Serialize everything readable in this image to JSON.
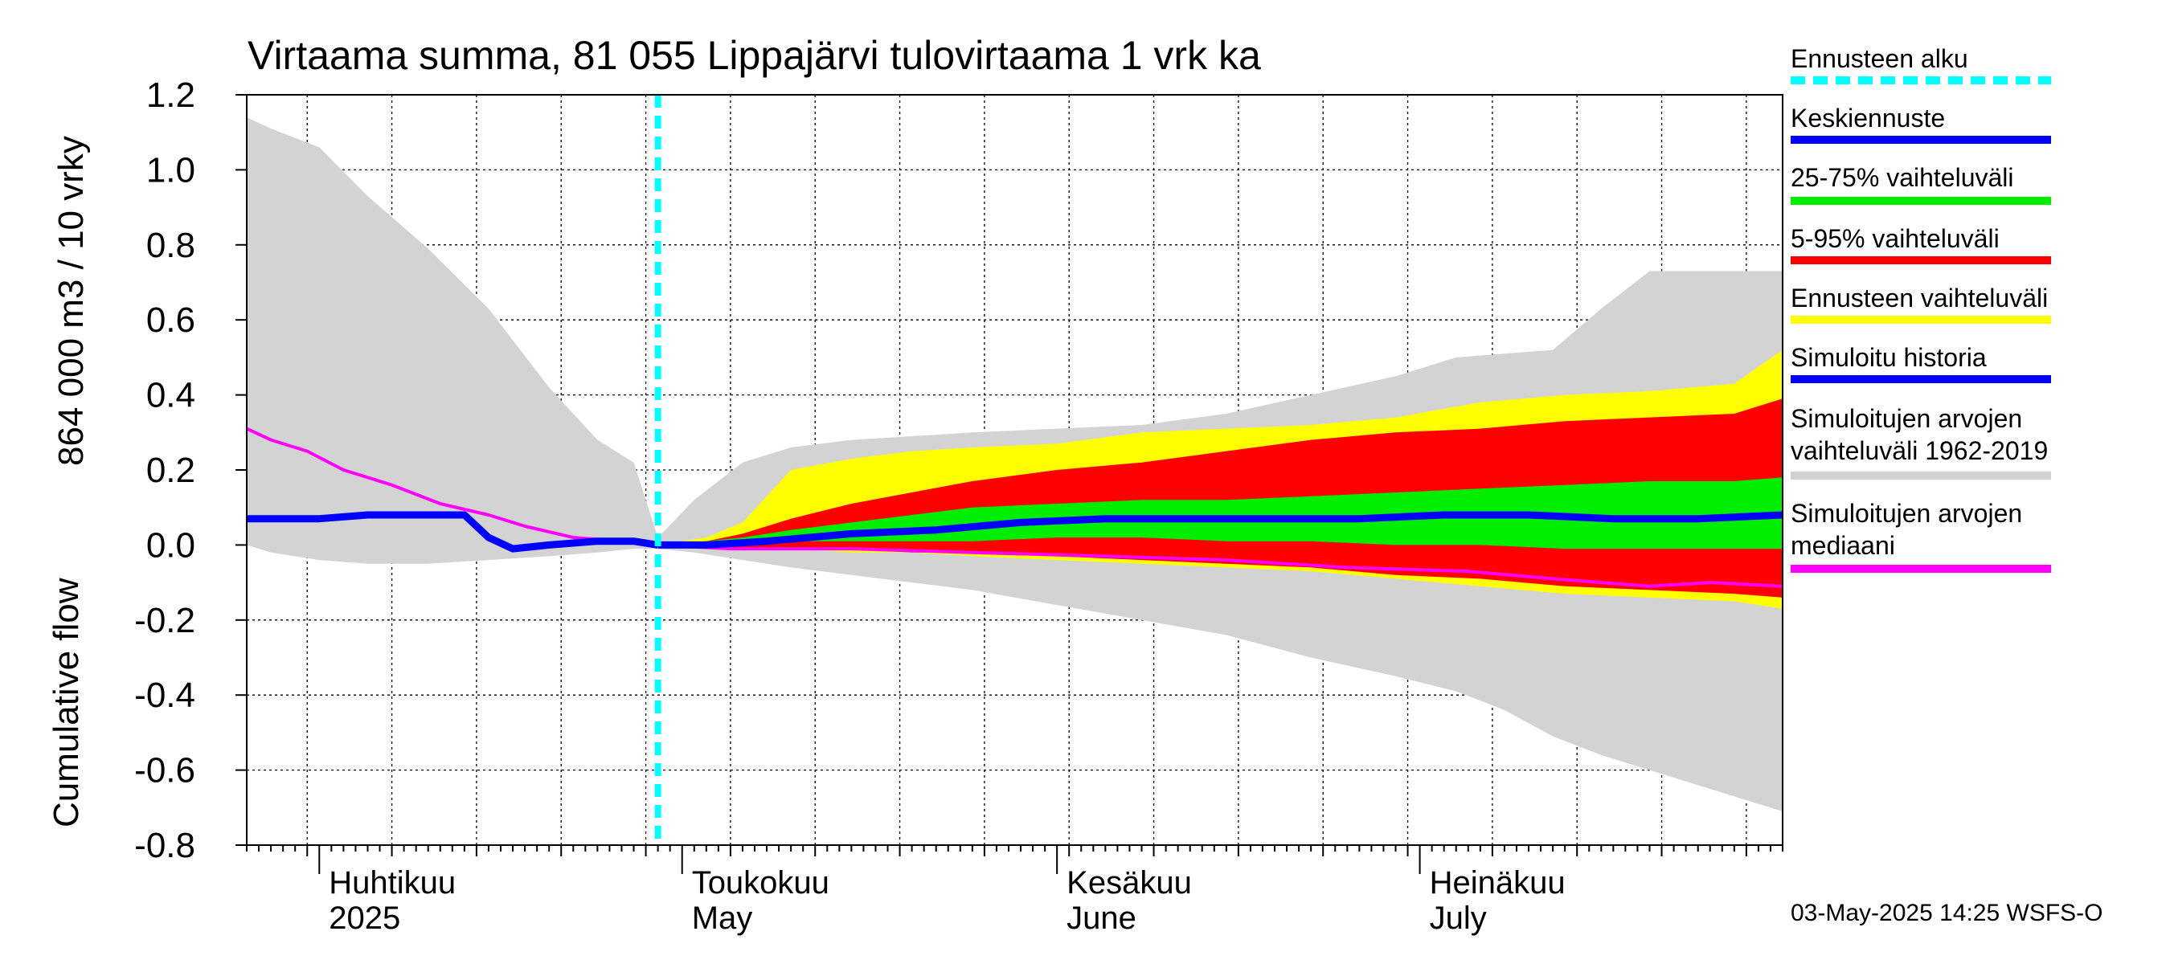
{
  "chart_data": {
    "type": "area",
    "title": "Virtaama summa, 81 055 Lippajärvi tulovirtaama 1 vrk ka",
    "ylabel_top": "864 000 m3 / 10 vrky",
    "ylabel_bottom": "Cumulative flow",
    "ylim": [
      -0.8,
      1.2
    ],
    "yticks": [
      -0.8,
      -0.6,
      -0.4,
      -0.2,
      0.0,
      0.2,
      0.4,
      0.6,
      0.8,
      1.0,
      1.2
    ],
    "ytick_labels": [
      "-0.8",
      "-0.6",
      "-0.4",
      "-0.2",
      "0.0",
      "0.2",
      "0.4",
      "0.6",
      "0.8",
      "1.0",
      "1.2"
    ],
    "x_start": "2025-03-26",
    "x_end": "2025-07-31",
    "grid": true,
    "month_labels": [
      {
        "date": "2025-04-01",
        "line1": "Huhtikuu",
        "line2": "2025"
      },
      {
        "date": "2025-05-01",
        "line1": "Toukokuu",
        "line2": "May"
      },
      {
        "date": "2025-06-01",
        "line1": "Kesäkuu",
        "line2": "June"
      },
      {
        "date": "2025-07-01",
        "line1": "Heinäkuu",
        "line2": "July"
      }
    ],
    "forecast_start": "2025-04-29",
    "series": [
      {
        "name": "Simuloitujen arvojen vaihteluväli 1962-2019",
        "color": "#d3d3d3",
        "kind": "band",
        "x": [
          "2025-03-26",
          "2025-03-28",
          "2025-04-01",
          "2025-04-05",
          "2025-04-10",
          "2025-04-15",
          "2025-04-20",
          "2025-04-24",
          "2025-04-27",
          "2025-04-29",
          "2025-05-02",
          "2025-05-06",
          "2025-05-10",
          "2025-05-15",
          "2025-05-20",
          "2025-05-25",
          "2025-06-01",
          "2025-06-08",
          "2025-06-15",
          "2025-06-22",
          "2025-06-29",
          "2025-07-04",
          "2025-07-08",
          "2025-07-12",
          "2025-07-16",
          "2025-07-20",
          "2025-07-25",
          "2025-07-31"
        ],
        "upper": [
          1.14,
          1.11,
          1.06,
          0.93,
          0.79,
          0.63,
          0.42,
          0.28,
          0.22,
          0.02,
          0.12,
          0.22,
          0.26,
          0.28,
          0.29,
          0.3,
          0.31,
          0.32,
          0.35,
          0.4,
          0.45,
          0.5,
          0.51,
          0.52,
          0.63,
          0.73,
          0.73,
          0.73
        ],
        "lower": [
          0.0,
          -0.02,
          -0.04,
          -0.05,
          -0.05,
          -0.04,
          -0.03,
          -0.02,
          -0.01,
          -0.01,
          -0.02,
          -0.04,
          -0.06,
          -0.08,
          -0.1,
          -0.12,
          -0.16,
          -0.2,
          -0.24,
          -0.3,
          -0.35,
          -0.39,
          -0.44,
          -0.51,
          -0.56,
          -0.6,
          -0.65,
          -0.71
        ]
      },
      {
        "name": "Ennusteen vaihteluväli",
        "color": "#ffff00",
        "kind": "band",
        "x": [
          "2025-04-29",
          "2025-05-03",
          "2025-05-06",
          "2025-05-10",
          "2025-05-15",
          "2025-05-20",
          "2025-05-25",
          "2025-06-01",
          "2025-06-08",
          "2025-06-15",
          "2025-06-22",
          "2025-06-29",
          "2025-07-06",
          "2025-07-13",
          "2025-07-20",
          "2025-07-27",
          "2025-07-31"
        ],
        "upper": [
          0.0,
          0.02,
          0.06,
          0.2,
          0.23,
          0.25,
          0.26,
          0.27,
          0.3,
          0.31,
          0.32,
          0.34,
          0.38,
          0.4,
          0.41,
          0.43,
          0.52
        ],
        "lower": [
          0.0,
          -0.01,
          -0.01,
          -0.01,
          -0.02,
          -0.02,
          -0.03,
          -0.04,
          -0.05,
          -0.06,
          -0.07,
          -0.09,
          -0.11,
          -0.13,
          -0.14,
          -0.15,
          -0.17
        ]
      },
      {
        "name": "5-95% vaihteluväli",
        "color": "#ff0000",
        "kind": "band",
        "x": [
          "2025-04-29",
          "2025-05-03",
          "2025-05-06",
          "2025-05-10",
          "2025-05-15",
          "2025-05-20",
          "2025-05-25",
          "2025-06-01",
          "2025-06-08",
          "2025-06-15",
          "2025-06-22",
          "2025-06-29",
          "2025-07-06",
          "2025-07-13",
          "2025-07-20",
          "2025-07-27",
          "2025-07-31"
        ],
        "upper": [
          0.0,
          0.01,
          0.03,
          0.07,
          0.11,
          0.14,
          0.17,
          0.2,
          0.22,
          0.25,
          0.28,
          0.3,
          0.31,
          0.33,
          0.34,
          0.35,
          0.39
        ],
        "lower": [
          0.0,
          0.0,
          -0.01,
          -0.01,
          -0.01,
          -0.02,
          -0.02,
          -0.03,
          -0.04,
          -0.05,
          -0.06,
          -0.08,
          -0.09,
          -0.11,
          -0.12,
          -0.13,
          -0.14
        ]
      },
      {
        "name": "25-75% vaihteluväli",
        "color": "#00ee00",
        "kind": "band",
        "x": [
          "2025-04-29",
          "2025-05-03",
          "2025-05-06",
          "2025-05-10",
          "2025-05-15",
          "2025-05-20",
          "2025-05-25",
          "2025-06-01",
          "2025-06-08",
          "2025-06-15",
          "2025-06-22",
          "2025-06-29",
          "2025-07-06",
          "2025-07-13",
          "2025-07-20",
          "2025-07-27",
          "2025-07-31"
        ],
        "upper": [
          0.0,
          0.01,
          0.02,
          0.04,
          0.06,
          0.08,
          0.1,
          0.11,
          0.12,
          0.12,
          0.13,
          0.14,
          0.15,
          0.16,
          0.17,
          0.17,
          0.18
        ],
        "lower": [
          0.0,
          0.0,
          0.0,
          0.01,
          0.01,
          0.01,
          0.01,
          0.02,
          0.02,
          0.01,
          0.01,
          0.0,
          0.0,
          -0.01,
          -0.01,
          -0.01,
          -0.01
        ]
      },
      {
        "name": "Simuloitujen arvojen mediaani",
        "color": "#ff00ff",
        "kind": "line",
        "x": [
          "2025-03-26",
          "2025-03-28",
          "2025-03-31",
          "2025-04-03",
          "2025-04-07",
          "2025-04-11",
          "2025-04-15",
          "2025-04-18",
          "2025-04-22",
          "2025-04-26",
          "2025-04-29",
          "2025-05-05",
          "2025-05-15",
          "2025-05-25",
          "2025-06-05",
          "2025-06-15",
          "2025-06-25",
          "2025-07-05",
          "2025-07-12",
          "2025-07-16",
          "2025-07-20",
          "2025-07-25",
          "2025-07-31"
        ],
        "y": [
          0.31,
          0.28,
          0.25,
          0.2,
          0.16,
          0.11,
          0.08,
          0.05,
          0.02,
          0.01,
          0.0,
          -0.01,
          -0.01,
          -0.02,
          -0.03,
          -0.04,
          -0.06,
          -0.07,
          -0.09,
          -0.1,
          -0.11,
          -0.1,
          -0.11
        ]
      },
      {
        "name": "Simuloitu historia",
        "color": "#0000ff",
        "kind": "line",
        "x": [
          "2025-03-26",
          "2025-04-01",
          "2025-04-05",
          "2025-04-10",
          "2025-04-13",
          "2025-04-15",
          "2025-04-17",
          "2025-04-20",
          "2025-04-24",
          "2025-04-27",
          "2025-04-29"
        ],
        "y": [
          0.07,
          0.07,
          0.08,
          0.08,
          0.08,
          0.02,
          -0.01,
          0.0,
          0.01,
          0.01,
          0.0
        ]
      },
      {
        "name": "Keskiennuste",
        "color": "#0000ff",
        "kind": "line",
        "x": [
          "2025-04-29",
          "2025-05-03",
          "2025-05-08",
          "2025-05-15",
          "2025-05-22",
          "2025-05-29",
          "2025-06-05",
          "2025-06-12",
          "2025-06-19",
          "2025-06-26",
          "2025-07-03",
          "2025-07-10",
          "2025-07-17",
          "2025-07-24",
          "2025-07-31"
        ],
        "y": [
          0.0,
          0.0,
          0.01,
          0.03,
          0.04,
          0.06,
          0.07,
          0.07,
          0.07,
          0.07,
          0.08,
          0.08,
          0.07,
          0.07,
          0.08
        ]
      }
    ],
    "legend": {
      "position": "right",
      "entries": [
        {
          "label": "Ennusteen alku",
          "color": "#00ffff",
          "style": "dashed"
        },
        {
          "label": "Keskiennuste",
          "color": "#0000ff",
          "style": "solid"
        },
        {
          "label": "25-75% vaihteluväli",
          "color": "#00ee00",
          "style": "solid"
        },
        {
          "label": "5-95% vaihteluväli",
          "color": "#ff0000",
          "style": "solid"
        },
        {
          "label": "Ennusteen vaihteluväli",
          "color": "#ffff00",
          "style": "solid"
        },
        {
          "label": "Simuloitu historia",
          "color": "#0000ff",
          "style": "solid"
        },
        {
          "label": "Simuloitujen arvojen\nvaihteluväli 1962-2019",
          "color": "#d3d3d3",
          "style": "solid"
        },
        {
          "label": "Simuloitujen arvojen\nmediaani",
          "color": "#ff00ff",
          "style": "solid"
        }
      ]
    },
    "footer": "03-May-2025 14:25 WSFS-O"
  }
}
